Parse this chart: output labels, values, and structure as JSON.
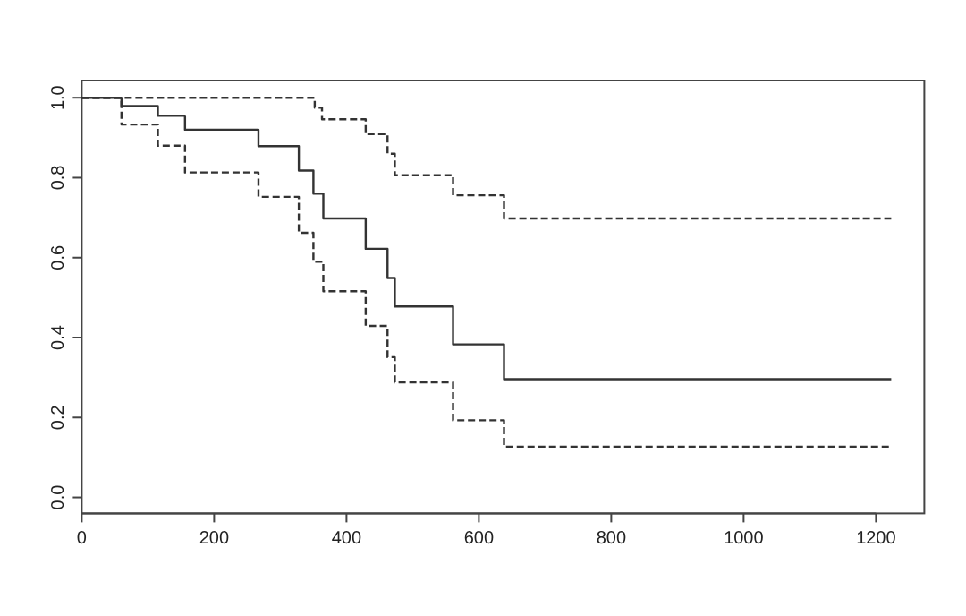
{
  "chart_data": {
    "type": "step",
    "xlim": [
      0,
      1273
    ],
    "xticks": [
      0,
      200,
      400,
      600,
      800,
      1000,
      1200
    ],
    "ylim": [
      -0.04,
      1.043
    ],
    "yticks": [
      {
        "value": 0,
        "label": "0.0"
      },
      0.2,
      0.4,
      0.6,
      0.8,
      {
        "value": 1,
        "label": "1.0"
      }
    ],
    "grid": false,
    "marker": "none",
    "series": [
      {
        "color": "#333333",
        "line_style": "solid",
        "x": [
          0,
          60,
          115,
          156,
          267,
          328,
          350,
          365,
          429,
          462,
          473,
          561,
          638,
          1223
        ],
        "values": [
          1,
          0.979,
          0.955,
          0.92,
          0.879,
          0.818,
          0.76,
          0.698,
          0.622,
          0.549,
          0.478,
          0.383,
          0.296,
          0.296
        ]
      },
      {
        "color": "#333333",
        "line_style": "dashed",
        "x": [
          0,
          352,
          363,
          429,
          462,
          473,
          561,
          638,
          1223
        ],
        "values": [
          1,
          0.975,
          0.946,
          0.909,
          0.86,
          0.806,
          0.756,
          0.698,
          0.698
        ]
      },
      {
        "color": "#333333",
        "line_style": "dashed",
        "x": [
          0,
          60,
          115,
          156,
          267,
          328,
          350,
          365,
          429,
          462,
          473,
          561,
          638,
          1223
        ],
        "values": [
          1,
          0.933,
          0.88,
          0.813,
          0.752,
          0.662,
          0.59,
          0.516,
          0.429,
          0.351,
          0.288,
          0.193,
          0.127,
          0.127
        ]
      }
    ]
  }
}
